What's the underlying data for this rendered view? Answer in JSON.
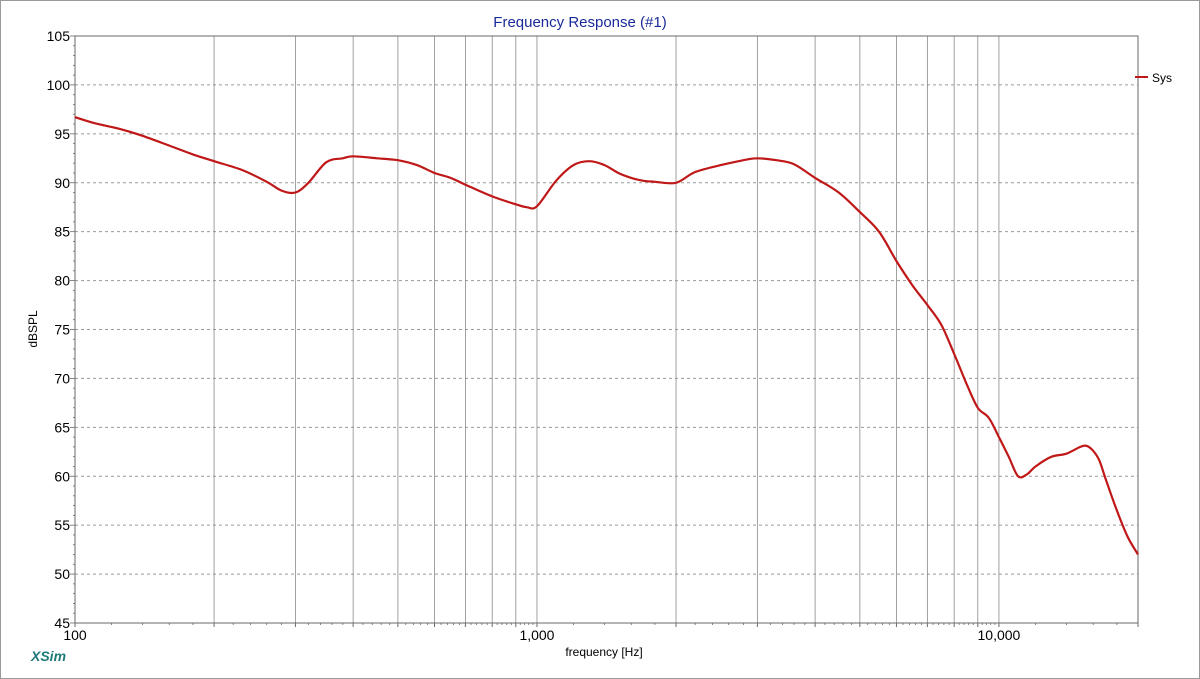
{
  "app": {
    "brand": "XSim"
  },
  "chart_data": {
    "type": "line",
    "title": "Frequency Response (#1)",
    "xlabel": "frequency [Hz]",
    "ylabel": "dBSPL",
    "x_scale": "log",
    "xlim": [
      100,
      20000
    ],
    "ylim": [
      45,
      105
    ],
    "x_ticks": [
      100,
      1000,
      10000
    ],
    "x_tick_labels": [
      "100",
      "1,000",
      "10,000"
    ],
    "y_ticks": [
      45,
      50,
      55,
      60,
      65,
      70,
      75,
      80,
      85,
      90,
      95,
      100,
      105
    ],
    "y_tick_labels": [
      "45",
      "50",
      "55",
      "60",
      "65",
      "70",
      "75",
      "80",
      "85",
      "90",
      "95",
      "100",
      "105"
    ],
    "grid": true,
    "legend_position": "top-right",
    "colors": {
      "title": "#1a2a9a",
      "series": "#c01818",
      "grid": "#9a9a9a",
      "brand": "#1f7a7a"
    },
    "series": [
      {
        "name": "Sys",
        "x": [
          100,
          110,
          125,
          140,
          160,
          180,
          200,
          230,
          260,
          280,
          300,
          320,
          350,
          380,
          400,
          450,
          500,
          550,
          600,
          650,
          700,
          800,
          900,
          950,
          1000,
          1100,
          1200,
          1300,
          1400,
          1500,
          1600,
          1700,
          1800,
          2000,
          2200,
          2500,
          2800,
          3000,
          3300,
          3600,
          4000,
          4500,
          5000,
          5500,
          6000,
          6500,
          7000,
          7500,
          8000,
          8500,
          9000,
          9500,
          10000,
          10500,
          11000,
          11500,
          12000,
          13000,
          14000,
          15000,
          15500,
          16000,
          16500,
          17000,
          18000,
          19000,
          20000
        ],
        "y": [
          96.7,
          96.1,
          95.5,
          94.8,
          93.8,
          92.9,
          92.2,
          91.3,
          90.1,
          89.2,
          89.0,
          90.0,
          92.1,
          92.5,
          92.7,
          92.5,
          92.3,
          91.8,
          91.0,
          90.5,
          89.8,
          88.6,
          87.8,
          87.5,
          87.6,
          90.2,
          91.8,
          92.2,
          91.8,
          91.0,
          90.5,
          90.2,
          90.1,
          90.0,
          91.1,
          91.8,
          92.3,
          92.5,
          92.3,
          91.9,
          90.5,
          89.0,
          87.0,
          85.0,
          82.0,
          79.5,
          77.5,
          75.5,
          72.5,
          69.5,
          67.0,
          66.0,
          64.0,
          62.0,
          60.0,
          60.2,
          61.0,
          62.0,
          62.3,
          63.0,
          63.1,
          62.6,
          61.6,
          59.8,
          56.5,
          53.8,
          52.0
        ]
      }
    ]
  }
}
